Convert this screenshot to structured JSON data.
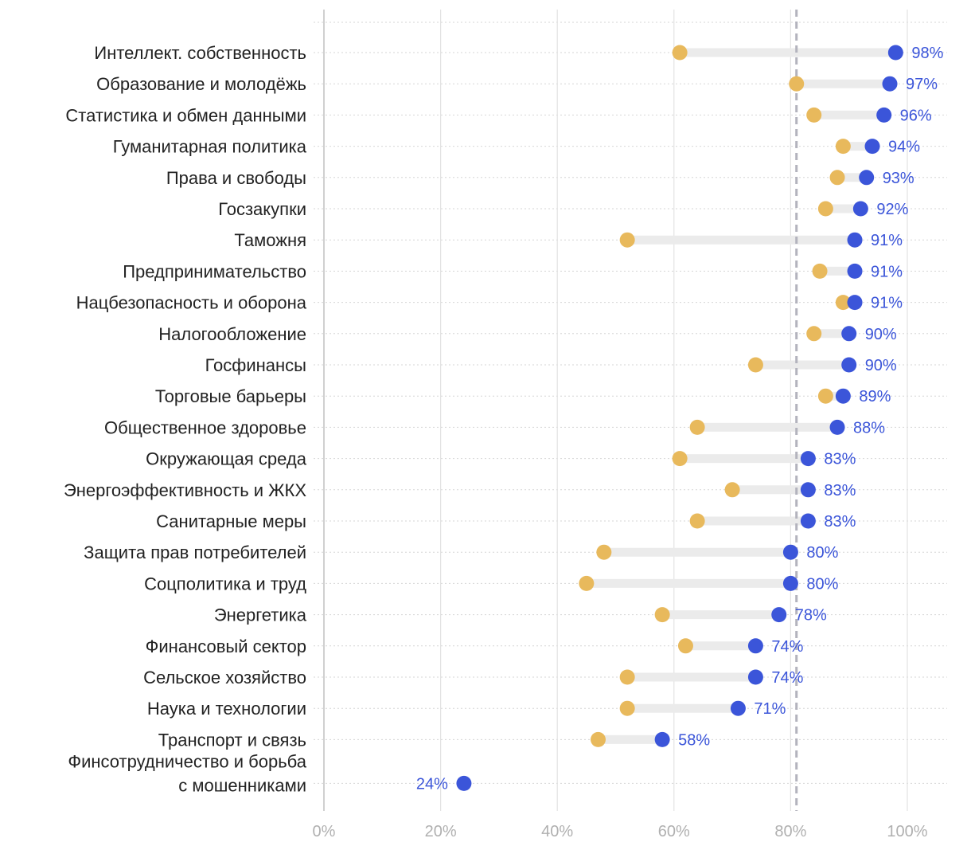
{
  "chart_data": {
    "type": "dumbbell",
    "title": "",
    "xlabel": "",
    "ylabel": "",
    "xlim": [
      0,
      100
    ],
    "x_ticks": [
      "0%",
      "20%",
      "40%",
      "60%",
      "80%",
      "100%"
    ],
    "x_tick_values": [
      0,
      20,
      40,
      60,
      80,
      100
    ],
    "reference_line": 81,
    "grid": true,
    "colors": {
      "start_dot": "#e8b95c",
      "end_dot": "#3b55d9",
      "value_label": "#3b55d9",
      "connector": "#ebebeb",
      "reference_line": "#b3b3bd"
    },
    "categories": [
      [
        "Интеллект. собственность"
      ],
      [
        "Образование и молодёжь"
      ],
      [
        "Статистика и обмен данными"
      ],
      [
        "Гуманитарная политика"
      ],
      [
        "Права и свободы"
      ],
      [
        "Госзакупки"
      ],
      [
        "Таможня"
      ],
      [
        "Предпринимательство"
      ],
      [
        "Нацбезопасность и оборона"
      ],
      [
        "Налогообложение"
      ],
      [
        "Госфинансы"
      ],
      [
        "Торговые барьеры"
      ],
      [
        "Общественное здоровье"
      ],
      [
        "Окружающая среда"
      ],
      [
        "Энергоэффективность и ЖКХ"
      ],
      [
        "Санитарные меры"
      ],
      [
        "Защита прав потребителей"
      ],
      [
        "Соцполитика и труд"
      ],
      [
        "Энергетика"
      ],
      [
        "Финансовый сектор"
      ],
      [
        "Сельское хозяйство"
      ],
      [
        "Наука и технологии"
      ],
      [
        "Транспорт и связь"
      ],
      [
        "Финсотрудничество и борьба",
        "с мошенниками"
      ]
    ],
    "start_values": [
      61,
      81,
      84,
      89,
      88,
      86,
      52,
      85,
      89,
      84,
      74,
      86,
      64,
      61,
      70,
      64,
      48,
      45,
      58,
      62,
      52,
      52,
      47,
      null
    ],
    "end_values": [
      98,
      97,
      96,
      94,
      93,
      92,
      91,
      91,
      91,
      90,
      90,
      89,
      88,
      83,
      83,
      83,
      80,
      80,
      78,
      74,
      74,
      71,
      58,
      24
    ],
    "end_labels": [
      "98%",
      "97%",
      "96%",
      "94%",
      "93%",
      "92%",
      "91%",
      "91%",
      "91%",
      "90%",
      "90%",
      "89%",
      "88%",
      "83%",
      "83%",
      "83%",
      "80%",
      "80%",
      "78%",
      "74%",
      "74%",
      "71%",
      "58%",
      "24%"
    ]
  }
}
